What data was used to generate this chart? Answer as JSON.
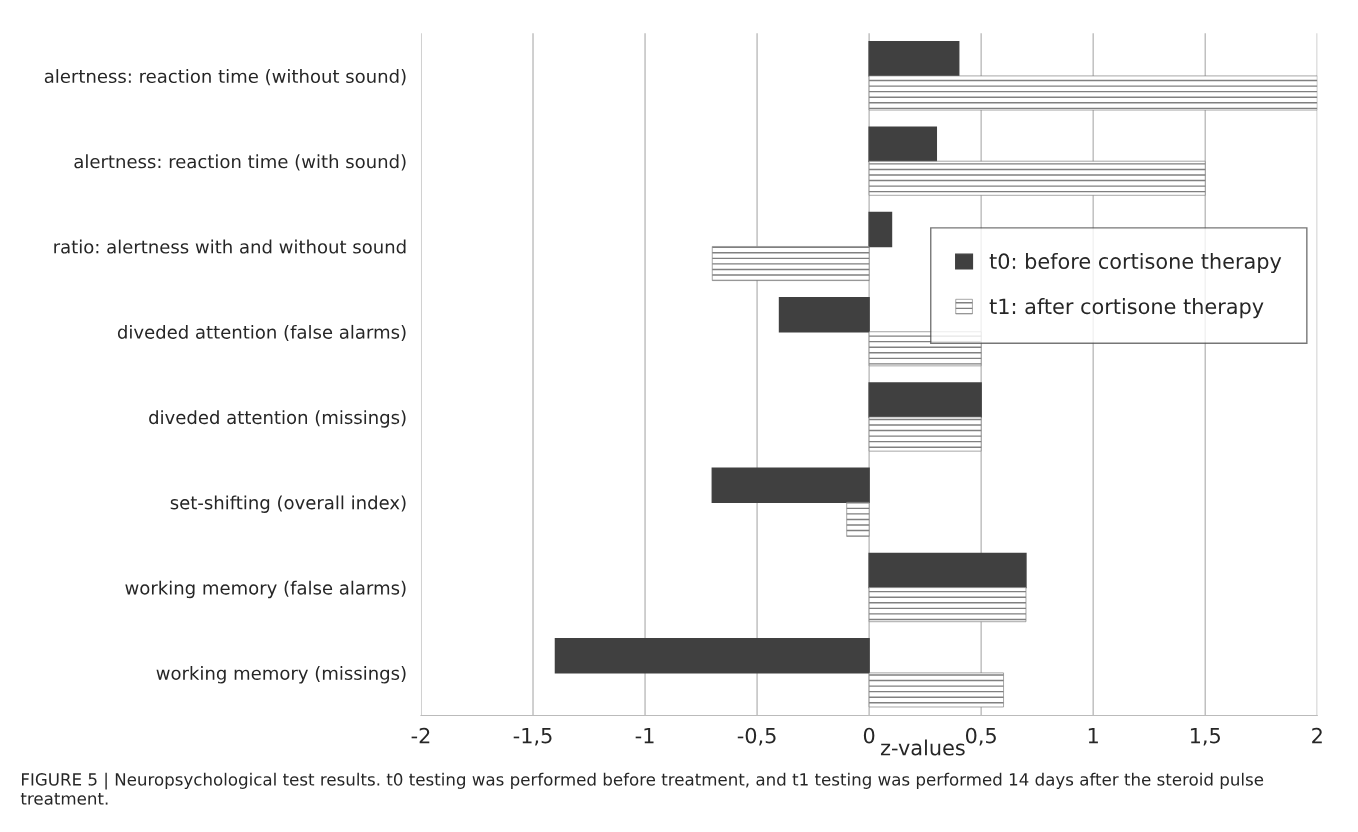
{
  "chart_data": {
    "type": "bar",
    "orientation": "horizontal",
    "xlabel": "z-values",
    "categories": [
      "alertness: reaction time (without sound)",
      "alertness: reaction time (with sound)",
      "ratio: alertness with and without sound",
      "diveded attention (false alarms)",
      "diveded attention (missings)",
      "set-shifting (overall index)",
      "working memory (false alarms)",
      "working memory (missings)"
    ],
    "series": [
      {
        "name": "t0: before cortisone therapy",
        "color": "#404040",
        "values": [
          0.4,
          0.3,
          0.1,
          -0.4,
          0.5,
          -0.7,
          0.7,
          -1.4
        ]
      },
      {
        "name": "t1: after cortisone therapy",
        "color": "#808080",
        "values": [
          2.0,
          1.5,
          -0.7,
          0.5,
          0.5,
          -0.1,
          0.7,
          0.6
        ]
      }
    ],
    "xlim": [
      -2,
      2
    ],
    "xticks": [
      -2,
      {
        "value": -1.5,
        "label": "-1,5"
      },
      -1,
      {
        "value": -0.5,
        "label": "-0,5"
      },
      0,
      {
        "value": 0.5,
        "label": "0,5"
      },
      1,
      {
        "value": 1.5,
        "label": "1,5"
      },
      2
    ],
    "grid": "x",
    "legend": "right",
    "annotations": [
      "FIGURE 5 | Neuropsychological test results. t0 testing was performed before treatment, and t1 testing was performed 14 days after the steroid pulse treatment."
    ]
  }
}
